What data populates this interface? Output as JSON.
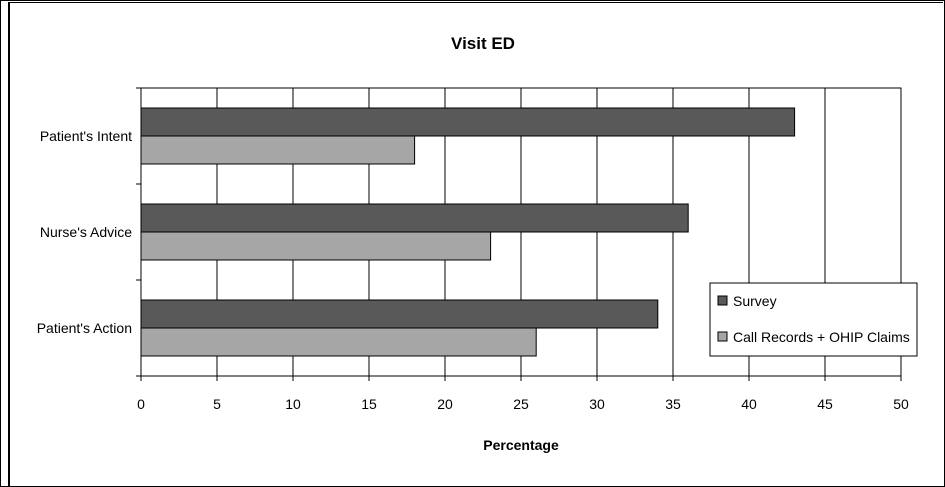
{
  "chart_data": {
    "type": "bar",
    "orientation": "horizontal",
    "title": "Visit ED",
    "xlabel": "Percentage",
    "ylabel": "",
    "categories": [
      "Patient's Intent",
      "Nurse's Advice",
      "Patient's Action"
    ],
    "series": [
      {
        "name": "Survey",
        "values": [
          43,
          36,
          34
        ],
        "color": "#595959"
      },
      {
        "name": "Call Records + OHIP Claims",
        "values": [
          18,
          23,
          26
        ],
        "color": "#a6a6a6"
      }
    ],
    "xlim": [
      0,
      50
    ],
    "xticks": [
      0,
      5,
      10,
      15,
      20,
      25,
      30,
      35,
      40,
      45,
      50
    ],
    "grid": "vertical",
    "legend_position": "bottom-right"
  }
}
